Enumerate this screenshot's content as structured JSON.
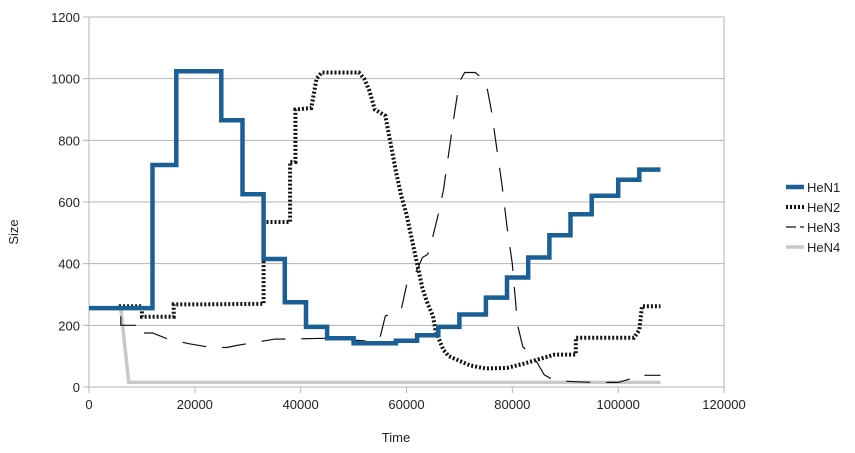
{
  "chart_data": {
    "type": "line",
    "xlabel": "Time",
    "ylabel": "Size",
    "xlim": [
      0,
      120000
    ],
    "ylim": [
      0,
      1200
    ],
    "x_ticks": [
      0,
      20000,
      40000,
      60000,
      80000,
      100000,
      120000
    ],
    "y_ticks": [
      0,
      200,
      400,
      600,
      800,
      1000,
      1200
    ],
    "x_tick_labels": [
      "0",
      "20000",
      "40000",
      "60000",
      "80000",
      "100000",
      "120000"
    ],
    "y_tick_labels": [
      "0",
      "200",
      "400",
      "600",
      "800",
      "1000",
      "1200"
    ],
    "grid": "horizontal",
    "legend_position": "right",
    "series": [
      {
        "name": "HeN1",
        "color": "#1a5f96",
        "style": "solid-thick",
        "points": [
          [
            0,
            256
          ],
          [
            12000,
            256
          ],
          [
            12000,
            720
          ],
          [
            16500,
            720
          ],
          [
            16500,
            1024
          ],
          [
            25000,
            1024
          ],
          [
            25000,
            865
          ],
          [
            29000,
            865
          ],
          [
            29000,
            625
          ],
          [
            33000,
            625
          ],
          [
            33000,
            415
          ],
          [
            37000,
            415
          ],
          [
            37000,
            275
          ],
          [
            41000,
            275
          ],
          [
            41000,
            195
          ],
          [
            45000,
            195
          ],
          [
            45000,
            158
          ],
          [
            50000,
            158
          ],
          [
            50000,
            142
          ],
          [
            58000,
            142
          ],
          [
            58000,
            150
          ],
          [
            62000,
            150
          ],
          [
            62000,
            168
          ],
          [
            66000,
            168
          ],
          [
            66000,
            195
          ],
          [
            70000,
            195
          ],
          [
            70000,
            235
          ],
          [
            75000,
            235
          ],
          [
            75000,
            290
          ],
          [
            79000,
            290
          ],
          [
            79000,
            355
          ],
          [
            83000,
            355
          ],
          [
            83000,
            420
          ],
          [
            87000,
            420
          ],
          [
            87000,
            492
          ],
          [
            91000,
            492
          ],
          [
            91000,
            560
          ],
          [
            95000,
            560
          ],
          [
            95000,
            620
          ],
          [
            100000,
            620
          ],
          [
            100000,
            672
          ],
          [
            104000,
            672
          ],
          [
            104000,
            705
          ],
          [
            108000,
            705
          ]
        ]
      },
      {
        "name": "HeN2",
        "color": "#111111",
        "style": "dotted-thick",
        "points": [
          [
            0,
            256
          ],
          [
            6000,
            256
          ],
          [
            6000,
            262
          ],
          [
            10000,
            262
          ],
          [
            10000,
            228
          ],
          [
            16000,
            228
          ],
          [
            16000,
            268
          ],
          [
            21000,
            268
          ],
          [
            33000,
            270
          ],
          [
            33000,
            535
          ],
          [
            38000,
            535
          ],
          [
            38000,
            730
          ],
          [
            39000,
            730
          ],
          [
            39000,
            900
          ],
          [
            42000,
            905
          ],
          [
            43000,
            1000
          ],
          [
            44000,
            1020
          ],
          [
            51000,
            1020
          ],
          [
            52000,
            1000
          ],
          [
            53000,
            960
          ],
          [
            54000,
            900
          ],
          [
            56000,
            880
          ],
          [
            57000,
            790
          ],
          [
            58000,
            700
          ],
          [
            59000,
            620
          ],
          [
            60000,
            560
          ],
          [
            61000,
            480
          ],
          [
            62000,
            400
          ],
          [
            63000,
            320
          ],
          [
            64000,
            270
          ],
          [
            65000,
            230
          ],
          [
            65500,
            180
          ],
          [
            66000,
            160
          ],
          [
            67000,
            120
          ],
          [
            68000,
            100
          ],
          [
            70000,
            85
          ],
          [
            72000,
            70
          ],
          [
            75000,
            60
          ],
          [
            79000,
            62
          ],
          [
            82000,
            75
          ],
          [
            84000,
            85
          ],
          [
            86000,
            95
          ],
          [
            88000,
            105
          ],
          [
            92000,
            105
          ],
          [
            92000,
            160
          ],
          [
            103000,
            160
          ],
          [
            104000,
            185
          ],
          [
            104500,
            262
          ],
          [
            108000,
            262
          ]
        ]
      },
      {
        "name": "HeN3",
        "color": "#111111",
        "style": "dashed-thin",
        "points": [
          [
            0,
            256
          ],
          [
            6000,
            256
          ],
          [
            6000,
            200
          ],
          [
            10000,
            200
          ],
          [
            10000,
            175
          ],
          [
            12000,
            175
          ],
          [
            15000,
            155
          ],
          [
            19000,
            140
          ],
          [
            23000,
            128
          ],
          [
            26000,
            128
          ],
          [
            28000,
            135
          ],
          [
            35000,
            155
          ],
          [
            45000,
            158
          ],
          [
            52000,
            150
          ],
          [
            55000,
            160
          ],
          [
            56000,
            230
          ],
          [
            59000,
            250
          ],
          [
            60000,
            330
          ],
          [
            62000,
            380
          ],
          [
            63000,
            420
          ],
          [
            64000,
            430
          ],
          [
            65000,
            490
          ],
          [
            66000,
            560
          ],
          [
            67000,
            640
          ],
          [
            68000,
            760
          ],
          [
            69000,
            880
          ],
          [
            70000,
            990
          ],
          [
            71000,
            1020
          ],
          [
            73000,
            1020
          ],
          [
            75000,
            990
          ],
          [
            76000,
            900
          ],
          [
            77000,
            780
          ],
          [
            78000,
            660
          ],
          [
            79000,
            520
          ],
          [
            80000,
            400
          ],
          [
            81000,
            200
          ],
          [
            82000,
            130
          ],
          [
            84000,
            100
          ],
          [
            86000,
            40
          ],
          [
            88000,
            20
          ],
          [
            95000,
            15
          ],
          [
            100000,
            15
          ],
          [
            102000,
            25
          ],
          [
            103000,
            38
          ],
          [
            108000,
            38
          ]
        ]
      },
      {
        "name": "HeN4",
        "color": "#c8c8c8",
        "style": "solid-thick",
        "points": [
          [
            0,
            256
          ],
          [
            6000,
            256
          ],
          [
            7500,
            15
          ],
          [
            108000,
            15
          ]
        ]
      }
    ]
  }
}
